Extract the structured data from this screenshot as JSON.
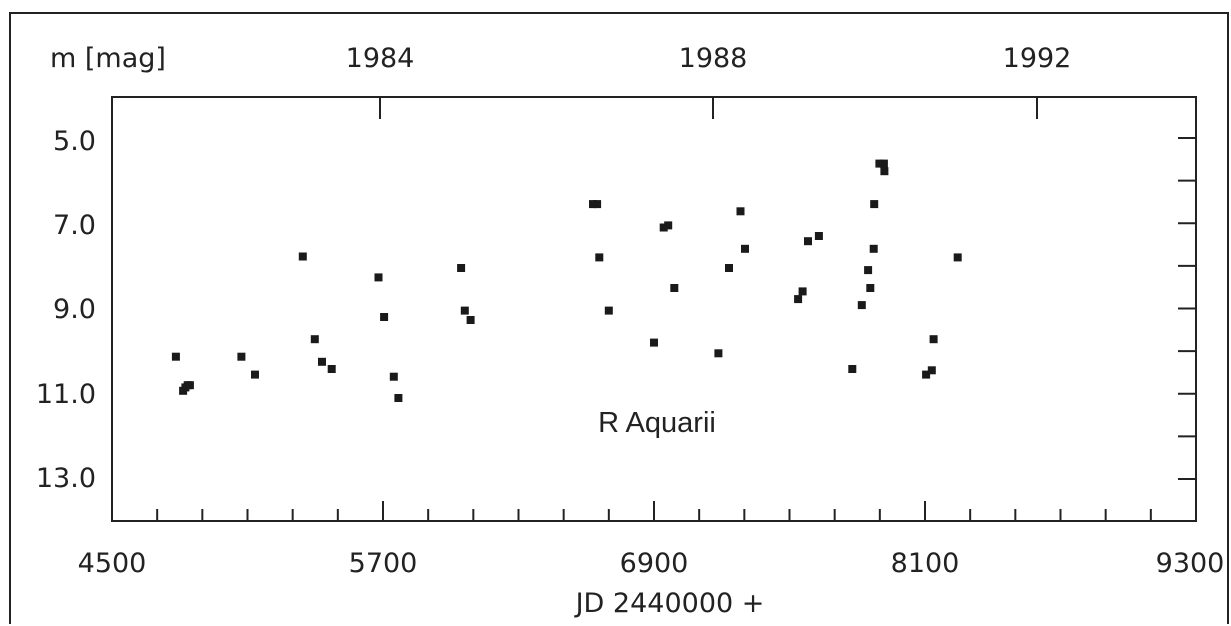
{
  "chart_data": {
    "type": "scatter",
    "title": "R Aquarii",
    "xlabel": "JD 2440000 +",
    "ylabel": "m [mag]",
    "xlim": [
      4500,
      9300
    ],
    "ylim": [
      14.0,
      4.0
    ],
    "y_inverted": true,
    "x_ticks": [
      "4500",
      "5700",
      "6900",
      "8100",
      "9300"
    ],
    "y_ticks": [
      "5.0",
      "7.0",
      "9.0",
      "11.0",
      "13.0"
    ],
    "top_axis_ticks": [
      "1984",
      "1988",
      "1992"
    ],
    "grid": false,
    "legend": "none",
    "points": [
      {
        "x": 4783,
        "y": 10.13
      },
      {
        "x": 4815,
        "y": 10.93
      },
      {
        "x": 4825,
        "y": 10.85
      },
      {
        "x": 4835,
        "y": 10.8
      },
      {
        "x": 4845,
        "y": 10.8
      },
      {
        "x": 5073,
        "y": 10.13
      },
      {
        "x": 5133,
        "y": 10.55
      },
      {
        "x": 5345,
        "y": 7.78
      },
      {
        "x": 5398,
        "y": 9.72
      },
      {
        "x": 5430,
        "y": 10.25
      },
      {
        "x": 5473,
        "y": 10.42
      },
      {
        "x": 5680,
        "y": 8.27
      },
      {
        "x": 5705,
        "y": 9.2
      },
      {
        "x": 5748,
        "y": 10.6
      },
      {
        "x": 5768,
        "y": 11.1
      },
      {
        "x": 6046,
        "y": 8.05
      },
      {
        "x": 6062,
        "y": 9.05
      },
      {
        "x": 6088,
        "y": 9.27
      },
      {
        "x": 6630,
        "y": 6.55
      },
      {
        "x": 6648,
        "y": 6.55
      },
      {
        "x": 6658,
        "y": 7.8
      },
      {
        "x": 6700,
        "y": 9.05
      },
      {
        "x": 6900,
        "y": 9.8
      },
      {
        "x": 6943,
        "y": 7.1
      },
      {
        "x": 6963,
        "y": 7.05
      },
      {
        "x": 6990,
        "y": 8.52
      },
      {
        "x": 7185,
        "y": 10.05
      },
      {
        "x": 7232,
        "y": 8.05
      },
      {
        "x": 7283,
        "y": 6.72
      },
      {
        "x": 7303,
        "y": 7.6
      },
      {
        "x": 7538,
        "y": 8.78
      },
      {
        "x": 7558,
        "y": 8.6
      },
      {
        "x": 7582,
        "y": 7.42
      },
      {
        "x": 7630,
        "y": 7.3
      },
      {
        "x": 7778,
        "y": 10.42
      },
      {
        "x": 7820,
        "y": 8.92
      },
      {
        "x": 7848,
        "y": 8.1
      },
      {
        "x": 7858,
        "y": 8.52
      },
      {
        "x": 7873,
        "y": 7.6
      },
      {
        "x": 7875,
        "y": 6.55
      },
      {
        "x": 7898,
        "y": 5.6
      },
      {
        "x": 7918,
        "y": 5.6
      },
      {
        "x": 7920,
        "y": 5.78
      },
      {
        "x": 8105,
        "y": 10.55
      },
      {
        "x": 8130,
        "y": 10.45
      },
      {
        "x": 8138,
        "y": 9.72
      },
      {
        "x": 8245,
        "y": 7.8
      }
    ]
  }
}
